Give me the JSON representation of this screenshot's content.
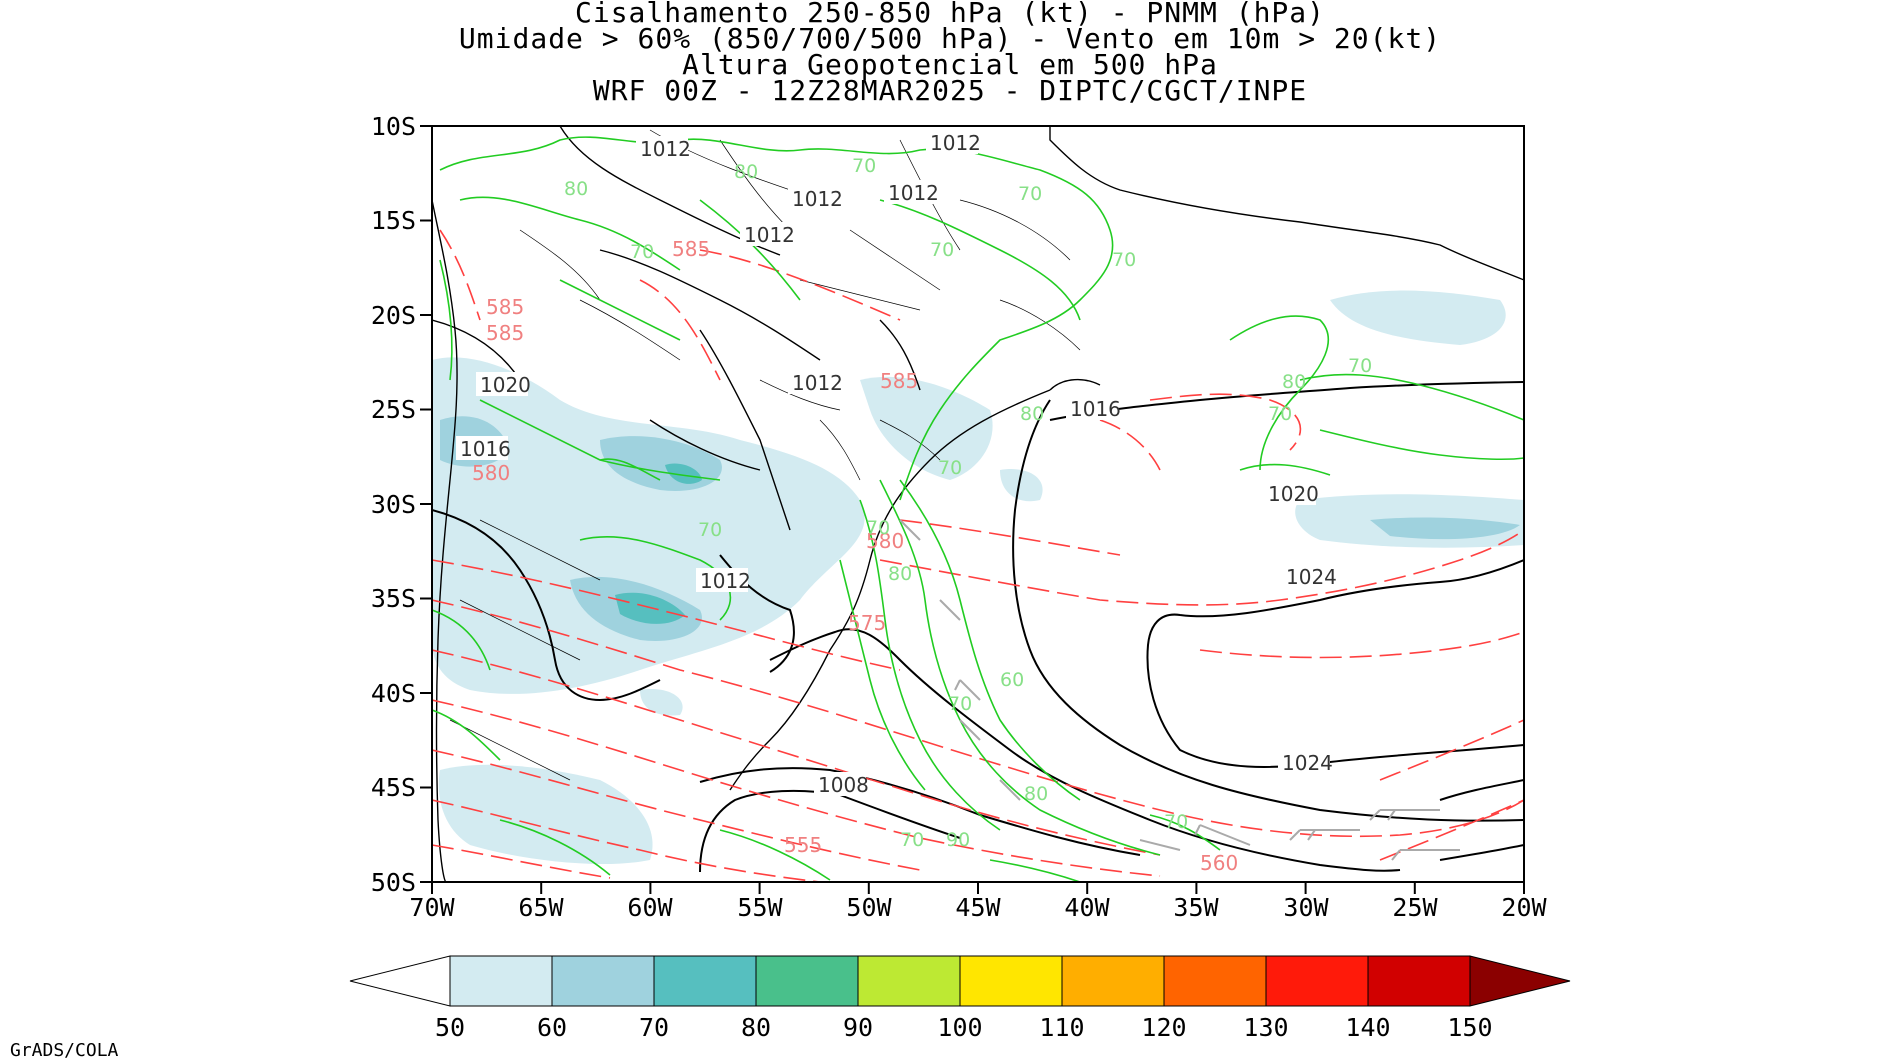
{
  "title": {
    "line1": "Cisalhamento 250-850 hPa (kt) - PNMM (hPa)",
    "line2": "Umidade > 60% (850/700/500 hPa) - Vento em 10m > 20(kt)",
    "line3": "Altura Geopotencial em 500 hPa",
    "line4": "WRF 00Z - 12Z28MAR2025 - DIPTC/CGCT/INPE"
  },
  "lat_ticks": [
    "10S",
    "15S",
    "20S",
    "25S",
    "30S",
    "35S",
    "40S",
    "45S",
    "50S"
  ],
  "lon_ticks": [
    "70W",
    "65W",
    "60W",
    "55W",
    "50W",
    "45W",
    "40W",
    "35W",
    "30W",
    "25W",
    "20W"
  ],
  "colorbar": {
    "labels": [
      "50",
      "60",
      "70",
      "80",
      "90",
      "100",
      "110",
      "120",
      "130",
      "140",
      "150"
    ],
    "colors": [
      "#d3ebf1",
      "#9fd2de",
      "#56bfbf",
      "#49c08b",
      "#bde933",
      "#ffe600",
      "#ffae00",
      "#ff6400",
      "#ff1a0a",
      "#d10000",
      "#8b0000"
    ]
  },
  "contour_labels": {
    "pressure": [
      "1012",
      "1012",
      "1012",
      "1012",
      "1012",
      "1012",
      "1012",
      "1020",
      "1016",
      "1016",
      "1020",
      "1024",
      "1024",
      "1008"
    ],
    "geopotential": [
      "585",
      "585",
      "585",
      "585",
      "580",
      "580",
      "575",
      "555",
      "560"
    ],
    "humidity": [
      "80",
      "80",
      "70",
      "70",
      "70",
      "70",
      "70",
      "80",
      "70",
      "70",
      "80",
      "80",
      "70",
      "70",
      "60",
      "70",
      "80",
      "70",
      "90",
      "70",
      "70"
    ]
  },
  "colors": {
    "shear_light": "#d3ebf1",
    "shear_mid": "#9fd2de",
    "shear_dark": "#56bfbf",
    "pressure_contour": "#000000",
    "geopotential_contour": "#ff4040",
    "humidity_contour": "#22cc22",
    "wind_barb": "#aaaaaa"
  },
  "credit": "GrADS/COLA"
}
